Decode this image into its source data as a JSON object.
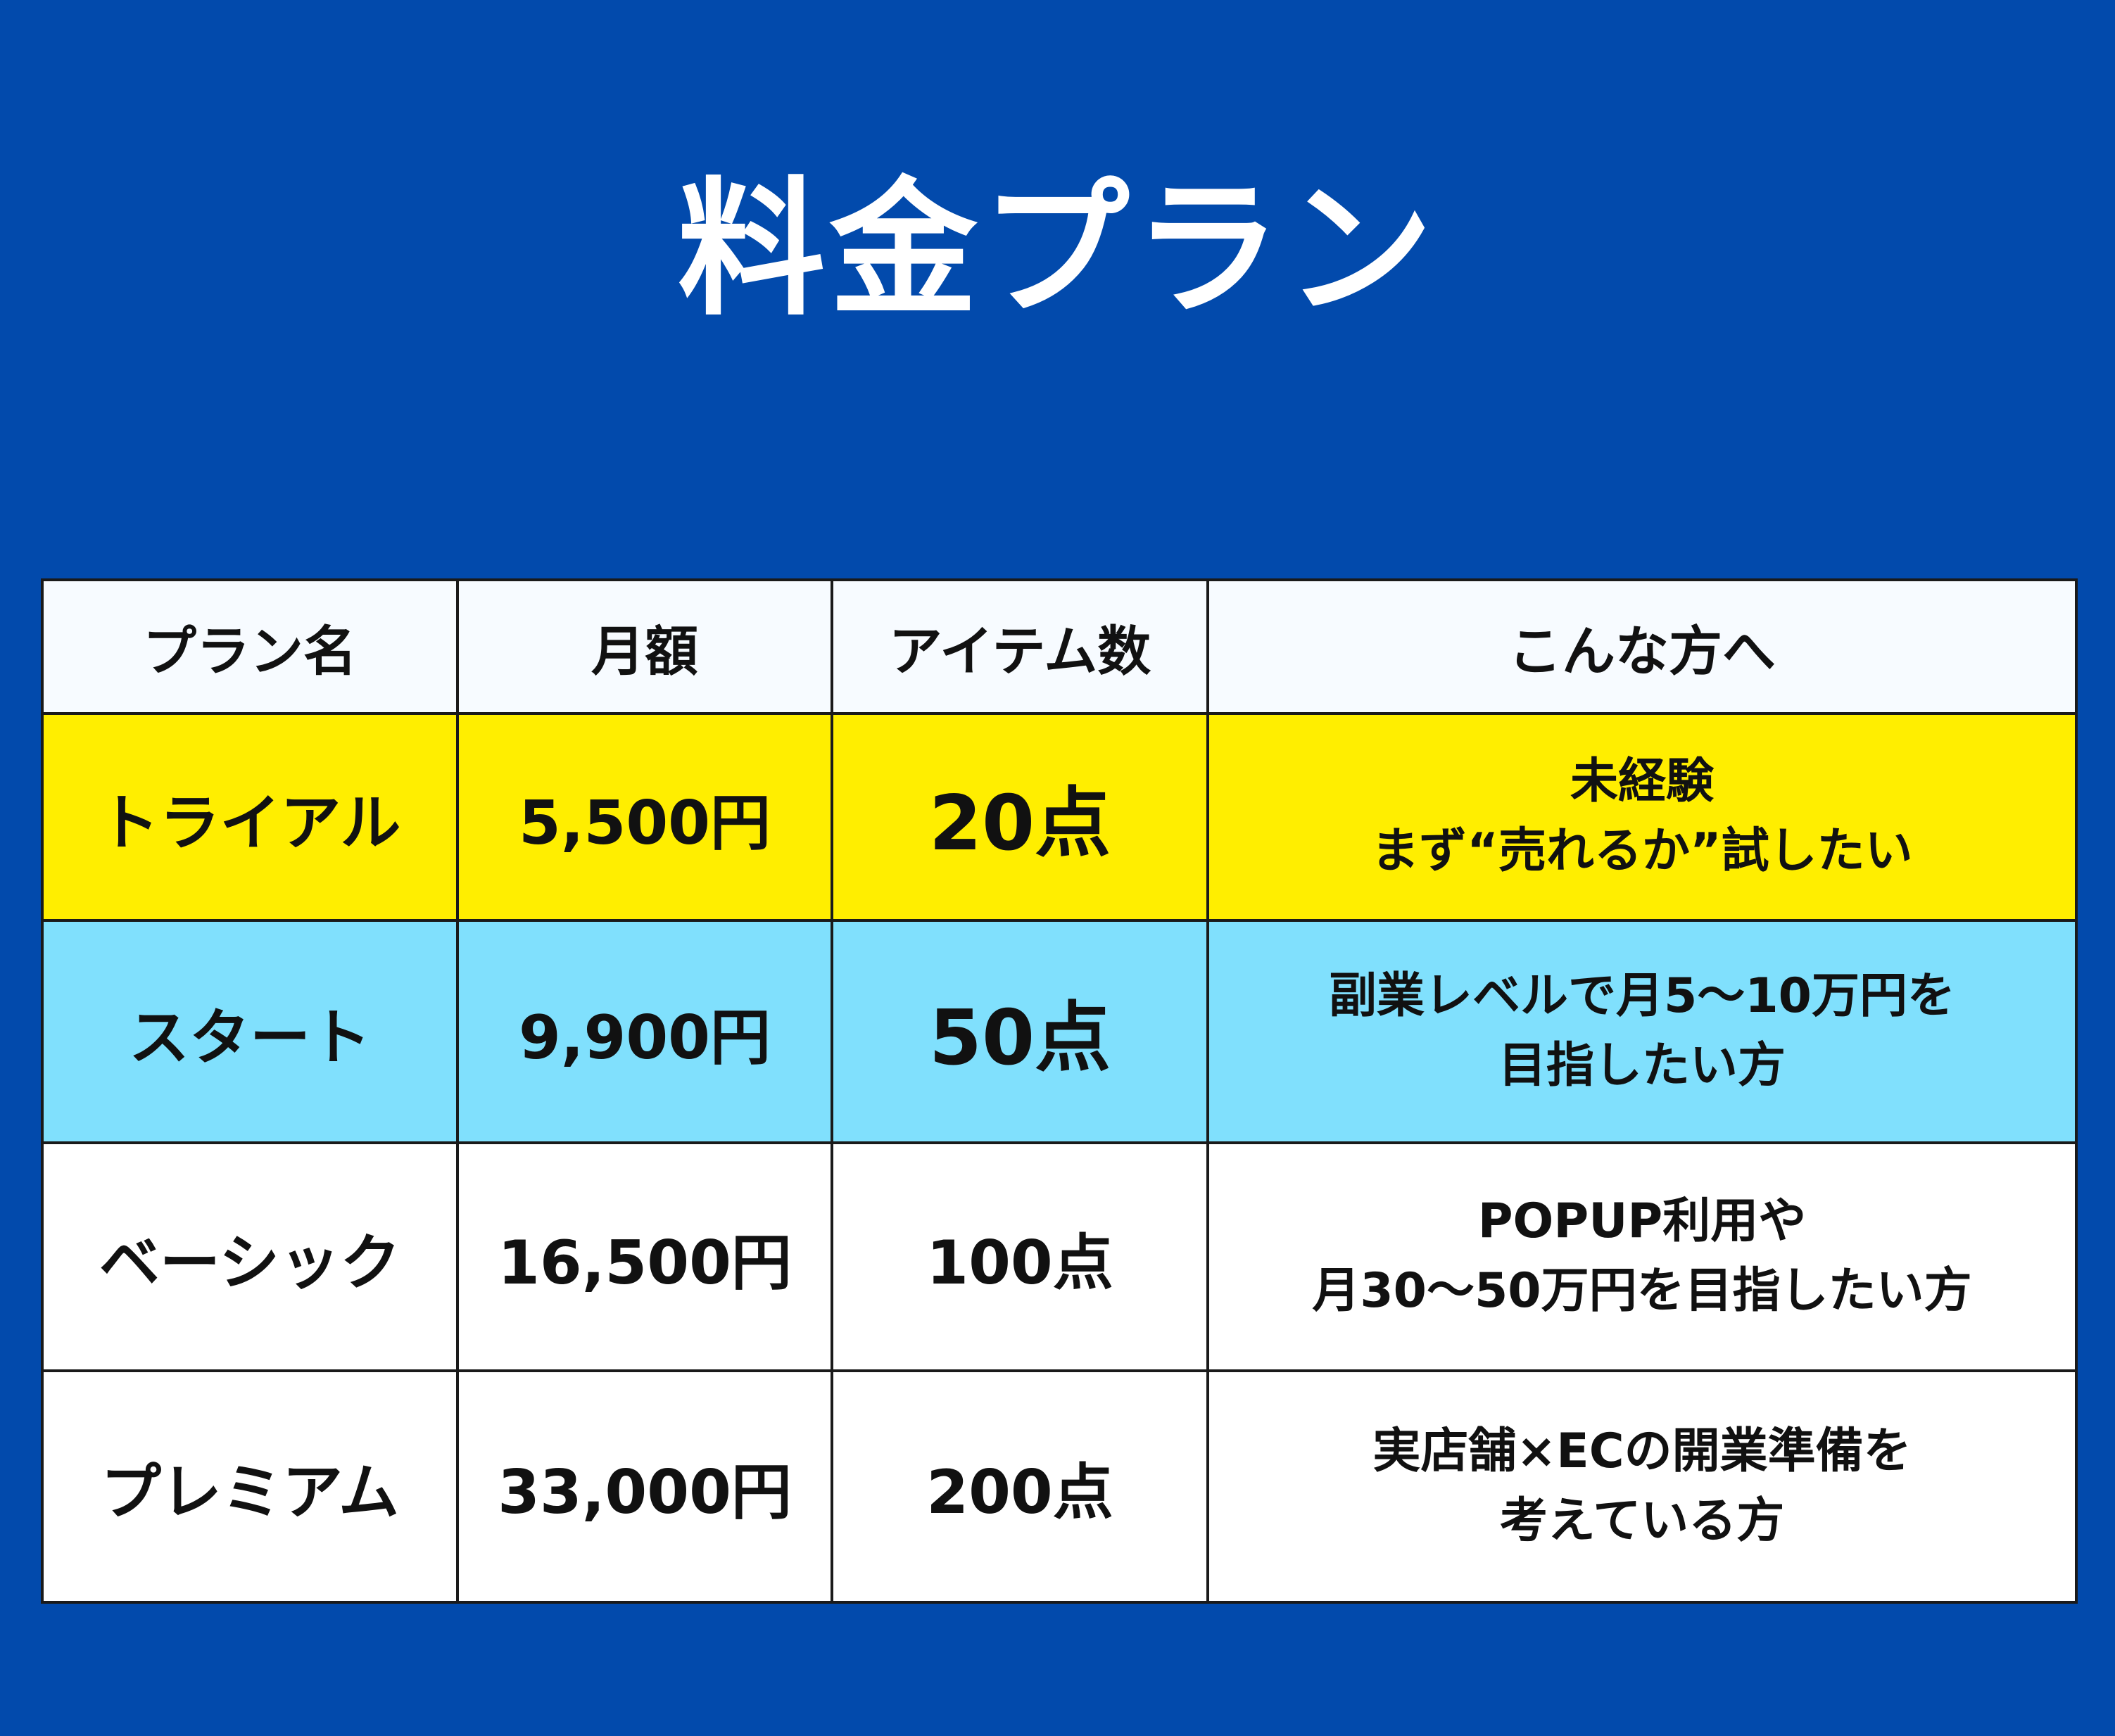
{
  "title": "料金プラン",
  "colors": {
    "background": "#024aac",
    "header_bg": "#f7fbff",
    "trial_row": "#ffee00",
    "start_row": "#80e0fd",
    "default_row": "#ffffff",
    "border": "#1a1a1a"
  },
  "table": {
    "headers": {
      "name": "プラン名",
      "price": "月額",
      "items": "アイテム数",
      "target": "こんな方へ"
    },
    "rows": [
      {
        "name": "トライアル",
        "price": "5,500円",
        "items": "20点",
        "target_lines": [
          "未経験",
          "まず“売れるか”試したい"
        ],
        "color": "#ffee00"
      },
      {
        "name": "スタート",
        "price": "9,900円",
        "items": "50点",
        "target_lines": [
          "副業レベルで月5〜10万円を",
          "目指したい方"
        ],
        "color": "#80e0fd"
      },
      {
        "name": "ベーシック",
        "price": "16,500円",
        "items": "100点",
        "target_lines": [
          "POPUP利用や",
          "月30〜50万円を目指したい方"
        ],
        "color": "#ffffff"
      },
      {
        "name": "プレミアム",
        "price": "33,000円",
        "items": "200点",
        "target_lines": [
          "実店舗×ECの開業準備を",
          "考えている方"
        ],
        "color": "#ffffff"
      }
    ]
  }
}
